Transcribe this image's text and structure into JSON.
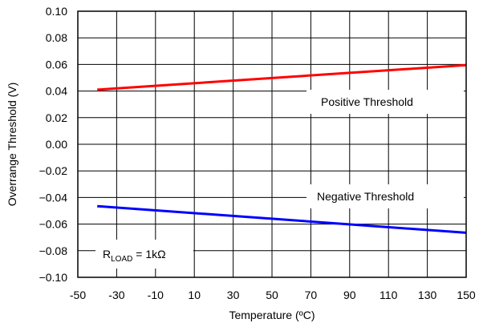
{
  "chart_data": {
    "type": "line",
    "xlabel": "Temperature (ºC)",
    "ylabel": "Overrange Threshold (V)",
    "xlim": [
      -50,
      150
    ],
    "ylim": [
      -0.1,
      0.1
    ],
    "x_ticks": [
      "-50",
      "-30",
      "-10",
      "10",
      "30",
      "50",
      "70",
      "90",
      "110",
      "130",
      "150"
    ],
    "x_tick_values": [
      -50,
      -30,
      -10,
      10,
      30,
      50,
      70,
      90,
      110,
      130,
      150
    ],
    "y_ticks": [
      "0.10",
      "0.08",
      "0.06",
      "0.04",
      "0.02",
      "0.00",
      "−0.02",
      "−0.04",
      "−0.06",
      "−0.08",
      "−0.10"
    ],
    "y_tick_values": [
      0.1,
      0.08,
      0.06,
      0.04,
      0.02,
      0.0,
      -0.02,
      -0.04,
      -0.06,
      -0.08,
      -0.1
    ],
    "grid": true,
    "series": [
      {
        "name": "Positive Threshold",
        "color": "#ff0000",
        "x": [
          -40,
          150
        ],
        "y": [
          0.041,
          0.0595
        ]
      },
      {
        "name": "Negative Threshold",
        "color": "#0000ff",
        "x": [
          -40,
          150
        ],
        "y": [
          -0.0465,
          -0.0665
        ]
      }
    ],
    "annotation": {
      "base": "R",
      "subscript": "LOAD",
      "rest": " = 1kΩ"
    }
  }
}
